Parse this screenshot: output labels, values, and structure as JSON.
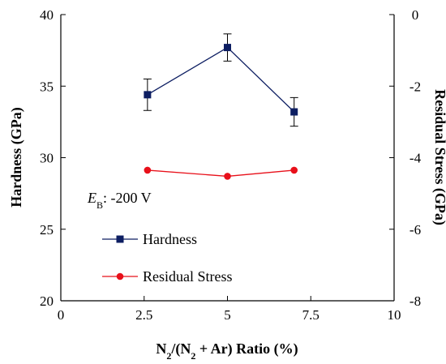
{
  "chart_data": {
    "type": "line",
    "xlabel": {
      "parts": [
        {
          "text": "N",
          "sub": false
        },
        {
          "text": "2",
          "sub": true
        },
        {
          "text": "/(N",
          "sub": false
        },
        {
          "text": "2",
          "sub": true
        },
        {
          "text": " + Ar) Ratio (%)",
          "sub": false
        }
      ]
    },
    "ylabel_left": "Hardness (GPa)",
    "ylabel_right": "Residual Stress (GPa)",
    "xlim": [
      0,
      10
    ],
    "xticks": [
      0,
      2.5,
      5,
      7.5,
      10
    ],
    "xtick_labels": [
      "0",
      "2.5",
      "5",
      "7.5",
      "10"
    ],
    "ylim_left": [
      20,
      40
    ],
    "yticks_left": [
      20,
      25,
      30,
      35,
      40
    ],
    "ylim_right": [
      -8,
      0
    ],
    "yticks_right": [
      -8,
      -6,
      -4,
      -2,
      0
    ],
    "ytick_labels_right": [
      "-8",
      "-6",
      "-4",
      "-2",
      "0"
    ],
    "grid": false,
    "legend_position": "lower-left",
    "annotation": {
      "italic": "E",
      "sub": "B",
      "rest": ": -200 V"
    },
    "series": [
      {
        "name": "Hardness",
        "axis": "left",
        "color": "#0d1e62",
        "marker": "square",
        "x": [
          2.6,
          5,
          7
        ],
        "y": [
          34.4,
          37.7,
          33.2
        ],
        "error": [
          1.1,
          0.95,
          1.0
        ]
      },
      {
        "name": "Residual Stress",
        "axis": "right",
        "color": "#e8101a",
        "marker": "circle",
        "x": [
          2.6,
          5,
          7
        ],
        "y": [
          -4.35,
          -4.52,
          -4.35
        ]
      }
    ]
  }
}
